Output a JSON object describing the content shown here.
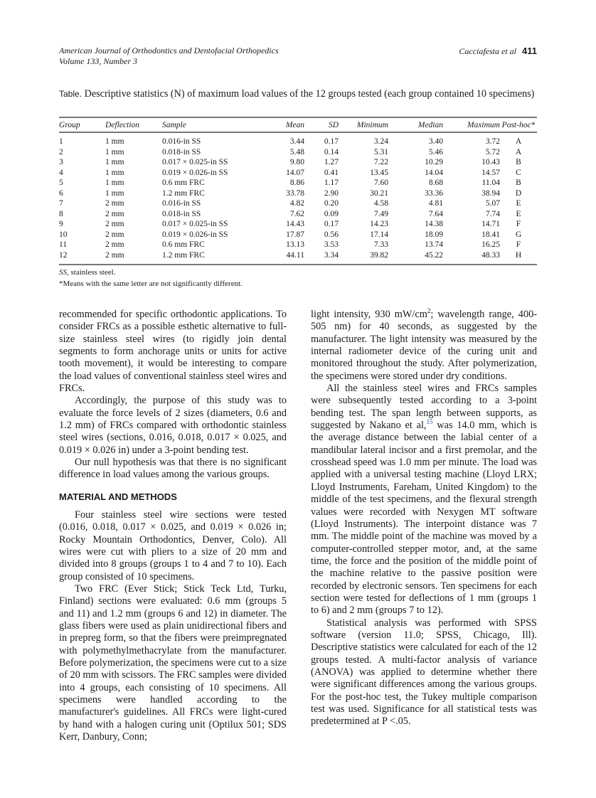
{
  "header": {
    "journal": "American Journal of Orthodontics and Dentofacial Orthopedics",
    "volume": "Volume 133, Number 3",
    "authors": "Cacciafesta et al",
    "page_number": "411"
  },
  "table": {
    "label": "Table.",
    "caption": "Descriptive statistics (N) of maximum load values of the 12 groups tested (each group contained 10 specimens)",
    "columns": [
      "Group",
      "Deflection",
      "Sample",
      "Mean",
      "SD",
      "Minimum",
      "Median",
      "Maximum",
      "Post-hoc*"
    ],
    "rows": [
      [
        "1",
        "1 mm",
        "0.016-in SS",
        "3.44",
        "0.17",
        "3.24",
        "3.40",
        "3.72",
        "A"
      ],
      [
        "2",
        "1 mm",
        "0.018-in SS",
        "5.48",
        "0.14",
        "5.31",
        "5.46",
        "5.72",
        "A"
      ],
      [
        "3",
        "1 mm",
        "0.017 × 0.025-in SS",
        "9.80",
        "1.27",
        "7.22",
        "10.29",
        "10.43",
        "B"
      ],
      [
        "4",
        "1 mm",
        "0.019 × 0.026-in SS",
        "14.07",
        "0.41",
        "13.45",
        "14.04",
        "14.57",
        "C"
      ],
      [
        "5",
        "1 mm",
        "0.6 mm FRC",
        "8.86",
        "1.17",
        "7.60",
        "8.68",
        "11.04",
        "B"
      ],
      [
        "6",
        "1 mm",
        "1.2 mm FRC",
        "33.78",
        "2.90",
        "30.21",
        "33.36",
        "38.94",
        "D"
      ],
      [
        "7",
        "2 mm",
        "0.016-in SS",
        "4.82",
        "0.20",
        "4.58",
        "4.81",
        "5.07",
        "E"
      ],
      [
        "8",
        "2 mm",
        "0.018-in SS",
        "7.62",
        "0.09",
        "7.49",
        "7.64",
        "7.74",
        "E"
      ],
      [
        "9",
        "2 mm",
        "0.017 × 0.025-in SS",
        "14.43",
        "0.17",
        "14.23",
        "14.38",
        "14.71",
        "F"
      ],
      [
        "10",
        "2 mm",
        "0.019 × 0.026-in SS",
        "17.87",
        "0.56",
        "17.14",
        "18.09",
        "18.41",
        "G"
      ],
      [
        "11",
        "2 mm",
        "0.6 mm FRC",
        "13.13",
        "3.53",
        "7.33",
        "13.74",
        "16.25",
        "F"
      ],
      [
        "12",
        "2 mm",
        "1.2 mm FRC",
        "44.11",
        "3.34",
        "39.82",
        "45.22",
        "48.33",
        "H"
      ]
    ],
    "footnote_abbr": "SS",
    "footnote_abbr_text": ", stainless steel.",
    "footnote_star": "*Means with the same letter are not significantly different."
  },
  "body": {
    "left": {
      "p1": "recommended for specific orthodontic applications. To consider FRCs as a possible esthetic alternative to full-size stainless steel wires (to rigidly join dental segments to form anchorage units or units for active tooth movement), it would be interesting to compare the load values of conventional stainless steel wires and FRCs.",
      "p2": "Accordingly, the purpose of this study was to evaluate the force levels of 2 sizes (diameters, 0.6 and 1.2 mm) of FRCs compared with orthodontic stainless steel wires (sections, 0.016, 0.018, 0.017 × 0.025, and 0.019 × 0.026 in) under a 3-point bending test.",
      "p3": "Our null hypothesis was that there is no significant difference in load values among the various groups.",
      "heading": "MATERIAL AND METHODS",
      "p4": "Four stainless steel wire sections were tested (0.016, 0.018, 0.017 × 0.025, and 0.019 × 0.026 in; Rocky Mountain Orthodontics, Denver, Colo). All wires were cut with pliers to a size of 20 mm and divided into 8 groups (groups 1 to 4 and 7 to 10). Each group consisted of 10 specimens.",
      "p5": "Two FRC (Ever Stick; Stick Teck Ltd, Turku, Finland) sections were evaluated: 0.6 mm (groups 5 and 11) and 1.2 mm (groups 6 and 12) in diameter. The glass fibers were used as plain unidirectional fibers and in prepreg form, so that the fibers were preimpregnated with polymethylmethacrylate from the manufacturer. Before polymerization, the specimens were cut to a size of 20 mm with scissors. The FRC samples were divided into 4 groups, each consisting of 10 specimens. All specimens were handled according to the manufacturer's guidelines. All FRCs were light-cured by hand with a halogen curing unit (Optilux 501; SDS Kerr, Danbury, Conn;"
    },
    "right": {
      "p1a": "light intensity, 930 mW/cm",
      "p1sup": "2",
      "p1b": "; wavelength range, 400-505 nm) for 40 seconds, as suggested by the manufacturer. The light intensity was measured by the internal radiometer device of the curing unit and monitored throughout the study. After polymerization, the specimens were stored under dry conditions.",
      "p2a": "All the stainless steel wires and FRCs samples were subsequently tested according to a 3-point bending test. The span length between supports, as suggested by Nakano et al,",
      "p2ref": "15",
      "p2b": " was 14.0 mm, which is the average distance between the labial center of a mandibular lateral incisor and a first premolar, and the crosshead speed was 1.0 mm per minute. The load was applied with a universal testing machine (Lloyd LRX; Lloyd Instruments, Fareham, United Kingdom) to the middle of the test specimens, and the flexural strength values were recorded with Nexygen MT software (Lloyd Instruments). The interpoint distance was 7 mm. The middle point of the machine was moved by a computer-controlled stepper motor, and, at the same time, the force and the position of the middle point of the machine relative to the passive position were recorded by electronic sensors. Ten specimens for each section were tested for deflections of 1 mm (groups 1 to 6) and 2 mm (groups 7 to 12).",
      "p3": "Statistical analysis was performed with SPSS software (version 11.0; SPSS, Chicago, Ill). Descriptive statistics were calculated for each of the 12 groups tested. A multi-factor analysis of variance (ANOVA) was applied to determine whether there were significant differences among the various groups. For the post-hoc test, the Tukey multiple comparison test was used. Significance for all statistical tests was predetermined at P <.05."
    }
  }
}
